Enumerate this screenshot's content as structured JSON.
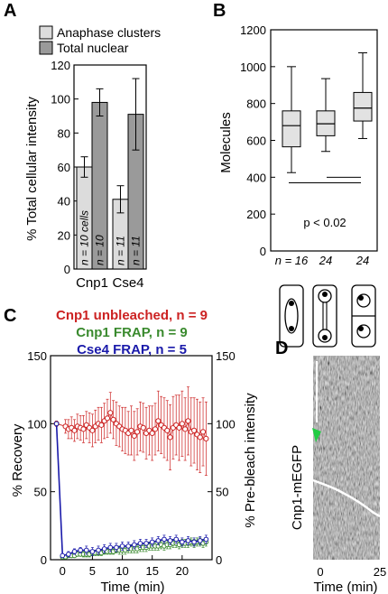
{
  "panels": {
    "a": {
      "letter": "A"
    },
    "b": {
      "letter": "B"
    },
    "c": {
      "letter": "C"
    },
    "d": {
      "letter": "D"
    }
  },
  "chart_data": [
    {
      "type": "bar",
      "panel": "A",
      "categories": [
        "Cnp1",
        "Cse4"
      ],
      "series": [
        {
          "name": "Anaphase clusters",
          "values": [
            60,
            41
          ],
          "errors": [
            6,
            8
          ],
          "color": "#dcdcdc",
          "bar_labels": [
            "n = 10 cells",
            "n = 11"
          ]
        },
        {
          "name": "Total nuclear",
          "values": [
            98,
            91
          ],
          "errors": [
            8,
            21
          ],
          "color": "#9a9a9a",
          "bar_labels": [
            "n = 10",
            "n = 11"
          ]
        }
      ],
      "ylabel": "% Total cellular intensity",
      "ylim": [
        0,
        120
      ],
      "yticks": [
        0,
        20,
        40,
        60,
        80,
        100,
        120
      ]
    },
    {
      "type": "box",
      "panel": "B",
      "ylabel": "Molecules",
      "ylim": [
        0,
        1200
      ],
      "yticks": [
        0,
        200,
        400,
        600,
        800,
        1000,
        1200
      ],
      "boxes": [
        {
          "whisker_low": 425,
          "q1": 565,
          "median": 680,
          "q3": 760,
          "whisker_high": 1000,
          "n_label": "n = 16"
        },
        {
          "whisker_low": 540,
          "q1": 625,
          "median": 690,
          "q3": 760,
          "whisker_high": 935,
          "n_label": "24"
        },
        {
          "whisker_low": 610,
          "q1": 705,
          "median": 775,
          "q3": 860,
          "whisker_high": 1075,
          "n_label": "24"
        }
      ],
      "annotation": "p < 0.02",
      "cell_icons": [
        "nucleus-single",
        "nucleus-anaphase",
        "nucleus-divided"
      ]
    },
    {
      "type": "line",
      "panel": "C",
      "xlabel": "Time (min)",
      "ylabel_left": "% Recovery",
      "ylabel_right": "% Pre-bleach intensity",
      "xlim": [
        -2,
        25
      ],
      "ylim": [
        0,
        150
      ],
      "xticks": [
        0,
        5,
        10,
        15,
        20
      ],
      "yticks": [
        0,
        50,
        100,
        150
      ],
      "legend": [
        {
          "text": "Cnp1 unbleached, n = 9",
          "color": "#cc2222"
        },
        {
          "text": "Cnp1 FRAP, n = 9",
          "color": "#3a8a2e"
        },
        {
          "text": "Cse4 FRAP, n = 5",
          "color": "#1a1aaa"
        }
      ],
      "series": [
        {
          "name": "Cnp1 unbleached, n = 9",
          "color": "#cc2222",
          "x": [
            -1,
            0.5,
            1,
            1.5,
            2,
            2.5,
            3,
            3.5,
            4,
            4.5,
            5,
            5.5,
            6,
            6.5,
            7,
            7.5,
            8,
            8.5,
            9,
            9.5,
            10,
            10.5,
            11,
            11.5,
            12,
            12.5,
            13,
            13.5,
            14,
            14.5,
            15,
            15.5,
            16,
            16.5,
            17,
            17.5,
            18,
            18.5,
            19,
            19.5,
            20,
            20.5,
            21,
            21.5,
            22,
            22.5,
            23,
            23.5,
            24
          ],
          "y": [
            100,
            98,
            96,
            97,
            95,
            98,
            97,
            96,
            99,
            97,
            95,
            98,
            100,
            99,
            102,
            104,
            108,
            103,
            100,
            98,
            96,
            95,
            93,
            95,
            91,
            94,
            98,
            97,
            93,
            95,
            93,
            96,
            102,
            99,
            97,
            95,
            90,
            97,
            99,
            97,
            100,
            96,
            102,
            94,
            95,
            92,
            90,
            94,
            89
          ],
          "err": [
            2,
            5,
            7,
            8,
            8,
            9,
            9,
            10,
            10,
            11,
            12,
            12,
            12,
            13,
            13,
            14,
            15,
            14,
            16,
            15,
            16,
            17,
            16,
            18,
            18,
            17,
            18,
            18,
            19,
            18,
            20,
            19,
            22,
            21,
            22,
            22,
            24,
            23,
            22,
            24,
            24,
            23,
            25,
            25,
            24,
            26,
            26,
            25,
            27
          ]
        },
        {
          "name": "Cnp1 FRAP, n = 9",
          "color": "#3a8a2e",
          "x": [
            -1,
            0,
            0.5,
            1,
            1.5,
            2,
            2.5,
            3,
            3.5,
            4,
            4.5,
            5,
            5.5,
            6,
            6.5,
            7,
            7.5,
            8,
            8.5,
            9,
            9.5,
            10,
            10.5,
            11,
            11.5,
            12,
            12.5,
            13,
            13.5,
            14,
            14.5,
            15,
            15.5,
            16,
            16.5,
            17,
            17.5,
            18,
            18.5,
            19,
            19.5,
            20,
            20.5,
            21,
            21.5,
            22,
            22.5,
            23,
            23.5,
            24
          ],
          "y": [
            100,
            2,
            2,
            3,
            3,
            3,
            4,
            4,
            4,
            4,
            4,
            5,
            5,
            5,
            5,
            6,
            6,
            6,
            6,
            7,
            7,
            7,
            7,
            8,
            8,
            8,
            8,
            9,
            9,
            9,
            10,
            10,
            10,
            10,
            11,
            10,
            11,
            11,
            12,
            12,
            11,
            12,
            12,
            12,
            13,
            12,
            13,
            13,
            12,
            13
          ],
          "err": [
            0,
            1,
            1,
            1,
            1,
            1,
            1,
            1,
            2,
            2,
            2,
            2,
            2,
            2,
            2,
            2,
            2,
            2,
            2,
            2,
            3,
            3,
            3,
            3,
            3,
            3,
            3,
            3,
            3,
            3,
            3,
            3,
            3,
            3,
            3,
            3,
            3,
            3,
            3,
            3,
            3,
            3,
            3,
            3,
            3,
            3,
            3,
            3,
            3,
            3
          ]
        },
        {
          "name": "Cse4 FRAP, n = 5",
          "color": "#1a1aaa",
          "x": [
            -1,
            0,
            1,
            2,
            3,
            4,
            5,
            6,
            7,
            8,
            9,
            10,
            11,
            12,
            13,
            14,
            15,
            16,
            17,
            18,
            19,
            20,
            21,
            22,
            23,
            24
          ],
          "y": [
            100,
            3,
            4,
            6,
            7,
            7,
            6,
            7,
            8,
            9,
            9,
            10,
            10,
            11,
            12,
            12,
            13,
            14,
            15,
            14,
            15,
            13,
            14,
            13,
            14,
            15
          ],
          "err": [
            0,
            1,
            2,
            2,
            2,
            3,
            3,
            3,
            3,
            3,
            3,
            3,
            3,
            3,
            3,
            3,
            3,
            3,
            3,
            3,
            3,
            3,
            3,
            3,
            3,
            3
          ]
        }
      ]
    },
    {
      "type": "image",
      "panel": "D",
      "ylabel": "Cnp1-mEGFP",
      "xlabel": "Time (min)",
      "xticks": [
        0,
        25
      ],
      "marker_color": "#22cc44"
    }
  ]
}
